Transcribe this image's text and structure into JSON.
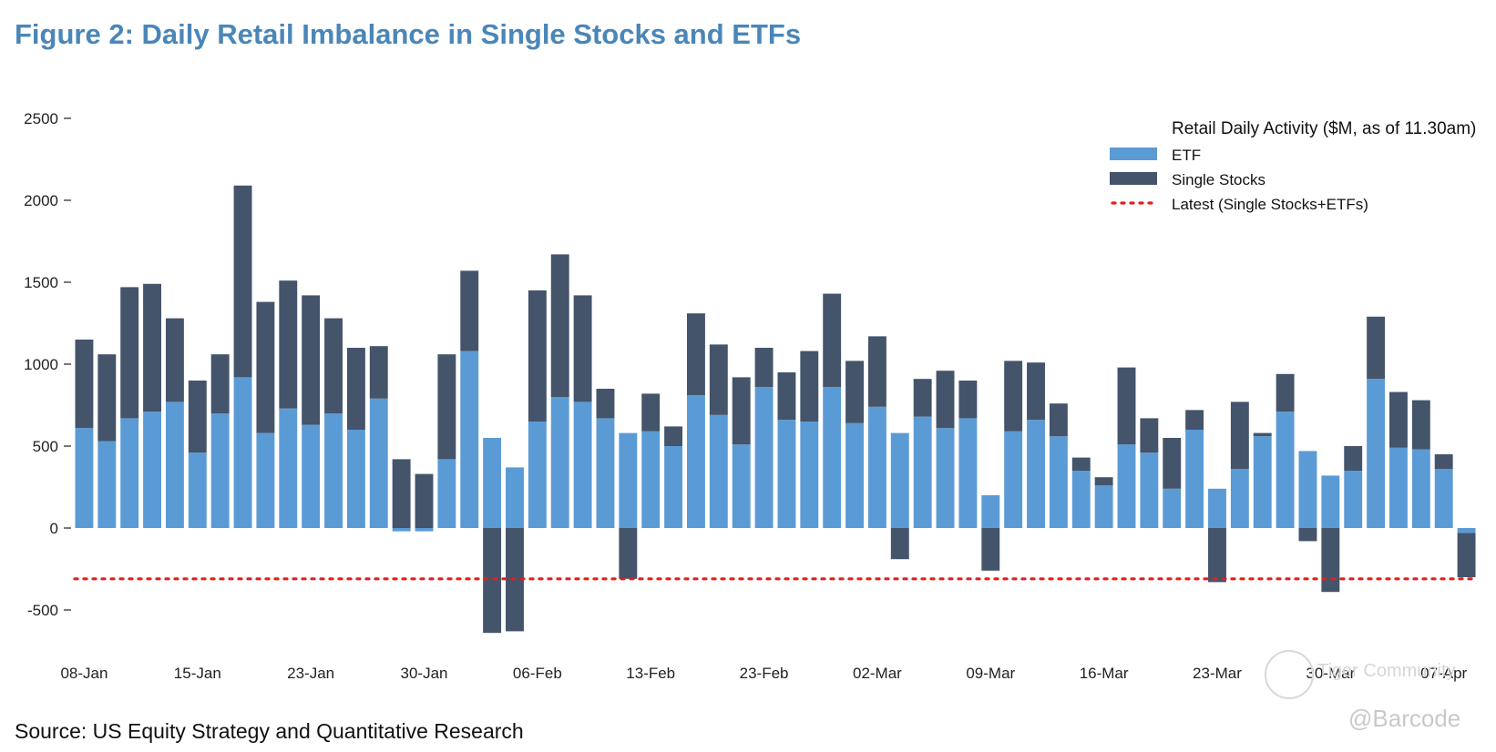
{
  "page": {
    "title": "Figure 2: Daily Retail Imbalance in Single Stocks and ETFs",
    "source": "Source: US Equity Strategy and Quantitative Research",
    "watermarks": [
      "Tiger Community",
      "@Barcode"
    ]
  },
  "colors": {
    "title": "#4a86b8",
    "etf": "#5b9bd5",
    "single_stocks": "#44546a",
    "latest_line": "#e02020"
  },
  "chart_data": {
    "type": "bar",
    "stacked": true,
    "title": "",
    "xlabel": "",
    "ylabel": "",
    "ylim": [
      -700,
      2600
    ],
    "yticks": [
      -500,
      0,
      500,
      1000,
      1500,
      2000,
      2500
    ],
    "ytick_labels": [
      "-500",
      "0",
      "500",
      "1000",
      "1500",
      "2000",
      "2500"
    ],
    "xtick_labels": [
      "08-Jan",
      "15-Jan",
      "23-Jan",
      "30-Jan",
      "06-Feb",
      "13-Feb",
      "23-Feb",
      "02-Mar",
      "09-Mar",
      "16-Mar",
      "23-Mar",
      "30-Mar",
      "07-Apr"
    ],
    "xtick_positions": [
      0,
      5,
      10,
      15,
      20,
      25,
      30,
      35,
      40,
      45,
      50,
      55,
      60
    ],
    "grid": false,
    "legend": {
      "title": "Retail Daily Activity ($M, as of 11.30am)",
      "placement": "top-right"
    },
    "series": [
      {
        "name": "ETF",
        "values": [
          610,
          530,
          670,
          710,
          770,
          460,
          700,
          920,
          580,
          730,
          630,
          700,
          600,
          790,
          -20,
          -20,
          420,
          1080,
          550,
          370,
          650,
          800,
          770,
          670,
          580,
          590,
          500,
          810,
          690,
          510,
          860,
          660,
          650,
          860,
          640,
          740,
          580,
          680,
          610,
          670,
          200,
          590,
          660,
          560,
          350,
          260,
          510,
          460,
          240,
          600,
          240,
          360,
          560,
          710,
          470,
          320,
          350,
          910,
          490,
          480,
          360,
          -30
        ]
      },
      {
        "name": "Single Stocks",
        "values": [
          540,
          530,
          800,
          780,
          510,
          440,
          360,
          1170,
          800,
          780,
          790,
          580,
          500,
          320,
          420,
          330,
          640,
          490,
          -640,
          -630,
          800,
          870,
          650,
          180,
          -310,
          230,
          120,
          500,
          430,
          410,
          240,
          290,
          430,
          570,
          380,
          430,
          -190,
          230,
          350,
          230,
          -260,
          430,
          350,
          200,
          80,
          50,
          470,
          210,
          310,
          120,
          -330,
          410,
          20,
          230,
          -80,
          -390,
          150,
          380,
          340,
          300,
          90,
          -270
        ]
      }
    ],
    "reference_lines": [
      {
        "name": "Latest (Single Stocks+ETFs)",
        "value": -310,
        "style": "dotted"
      }
    ]
  }
}
